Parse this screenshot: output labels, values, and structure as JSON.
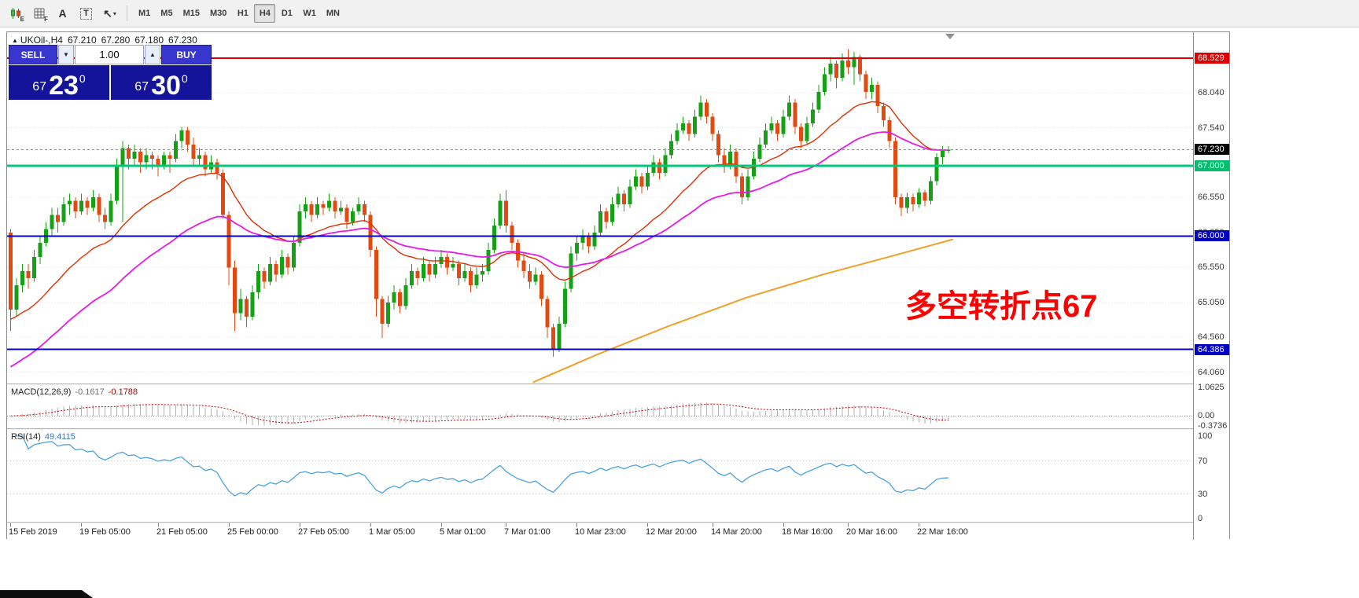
{
  "toolbar": {
    "icons": [
      {
        "name": "candlestick-chart-icon",
        "type": "candles",
        "badge": "E"
      },
      {
        "name": "grid-indicator-icon",
        "type": "grid",
        "badge": "F"
      },
      {
        "name": "text-tool-icon",
        "type": "glyph",
        "glyph": "A"
      },
      {
        "name": "label-tool-icon",
        "type": "boxglyph",
        "glyph": "T"
      },
      {
        "name": "cursor-tool-icon",
        "type": "glyph2",
        "glyph": "↖",
        "caret": "▾"
      }
    ],
    "timeframes": [
      {
        "label": "M1"
      },
      {
        "label": "M5"
      },
      {
        "label": "M15"
      },
      {
        "label": "M30"
      },
      {
        "label": "H1"
      },
      {
        "label": "H4",
        "active": true
      },
      {
        "label": "D1"
      },
      {
        "label": "W1"
      },
      {
        "label": "MN"
      }
    ]
  },
  "chart": {
    "marker": "▲",
    "symbol_timeframe": "UKOil-,H4",
    "ohlc": {
      "open": "67.210",
      "high": "67.280",
      "low": "67.180",
      "close": "67.230"
    }
  },
  "trade_panel": {
    "sell_label": "SELL",
    "buy_label": "BUY",
    "volume": "1.00",
    "spinner_down": "▼",
    "spinner_up": "▲",
    "sell_price": {
      "prefix": "67",
      "big": "23",
      "sup": "0"
    },
    "buy_price": {
      "prefix": "67",
      "big": "30",
      "sup": "0"
    }
  },
  "annotation": {
    "text": "多空转折点67",
    "color": "#FF0000"
  },
  "price_axis": {
    "regular": [
      {
        "label": "68.040",
        "price": 68.04
      },
      {
        "label": "67.540",
        "price": 67.54
      },
      {
        "label": "66.550",
        "price": 66.55
      },
      {
        "label": "66.050",
        "price": 66.05
      },
      {
        "label": "65.550",
        "price": 65.55
      },
      {
        "label": "65.050",
        "price": 65.05
      },
      {
        "label": "64.560",
        "price": 64.56
      },
      {
        "label": "64.060",
        "price": 64.06
      }
    ],
    "grid": [
      68.04,
      67.54,
      67.04,
      66.55,
      66.05,
      65.55,
      65.05,
      64.56,
      64.06
    ],
    "special": [
      {
        "label": "68.529",
        "price": 68.529,
        "bg": "#DD0000",
        "fg": "#ffffff"
      },
      {
        "label": "67.230",
        "price": 67.23,
        "bg": "#000000",
        "fg": "#ffffff"
      },
      {
        "label": "67.000",
        "price": 67.0,
        "bg": "#00BE6E",
        "fg": "#ffffff"
      },
      {
        "label": "66.000",
        "price": 66.0,
        "bg": "#0000BE",
        "fg": "#ffffff"
      },
      {
        "label": "64.386",
        "price": 64.386,
        "bg": "#0000BE",
        "fg": "#ffffff"
      }
    ]
  },
  "levels": [
    {
      "price": 68.529,
      "color": "#DD0000",
      "width": 2,
      "style": "solid"
    },
    {
      "price": 67.23,
      "color": "#8a8a8a",
      "width": 1,
      "style": "dashed"
    },
    {
      "price": 67.0,
      "color": "#00C878",
      "width": 3,
      "style": "solid"
    },
    {
      "price": 66.0,
      "color": "#0000BE",
      "width": 2,
      "style": "solid"
    },
    {
      "price": 64.386,
      "color": "#0000BE",
      "width": 2,
      "style": "solid"
    }
  ],
  "time_axis": [
    {
      "label": "15 Feb 2019",
      "index": 0
    },
    {
      "label": "19 Feb 05:00",
      "index": 12
    },
    {
      "label": "21 Feb 05:00",
      "index": 25
    },
    {
      "label": "25 Feb 00:00",
      "index": 37
    },
    {
      "label": "27 Feb 05:00",
      "index": 49
    },
    {
      "label": "1 Mar 05:00",
      "index": 61
    },
    {
      "label": "5 Mar 01:00",
      "index": 73
    },
    {
      "label": "7 Mar 01:00",
      "index": 84
    },
    {
      "label": "10 Mar 23:00",
      "index": 96
    },
    {
      "label": "12 Mar 20:00",
      "index": 108
    },
    {
      "label": "14 Mar 20:00",
      "index": 119
    },
    {
      "label": "18 Mar 16:00",
      "index": 131
    },
    {
      "label": "20 Mar 16:00",
      "index": 142
    },
    {
      "label": "22 Mar 16:00",
      "index": 154
    }
  ],
  "macd": {
    "name": "MACD(12,26,9)",
    "value_main": "-0.1617",
    "value_signal": "-0.1788",
    "fast": 12,
    "slow": 26,
    "signal": 9,
    "ymax": 1.0625,
    "ymin": -0.3736,
    "scale": [
      {
        "label": "1.0625",
        "v": 1.0625
      },
      {
        "label": "0.00",
        "v": 0
      },
      {
        "label": "-0.3736",
        "v": -0.3736
      }
    ],
    "hist_color": "#b2b2b2",
    "signal_color": "#c80000"
  },
  "rsi": {
    "name": "RSI(14)",
    "value": "49.4115",
    "period": 14,
    "color": "#4AA3E0",
    "scale": [
      {
        "label": "100",
        "v": 100
      },
      {
        "label": "70",
        "v": 70
      },
      {
        "label": "30",
        "v": 30
      },
      {
        "label": "0",
        "v": 0
      }
    ],
    "levels": [
      70,
      30
    ]
  },
  "chart_data": {
    "type": "candlestick",
    "symbol": "UKOil-",
    "timeframe": "H4",
    "price_range": [
      63.9,
      68.9
    ],
    "up_color": "#16A016",
    "down_color": "#E24A12",
    "moving_averages": [
      {
        "name": "fast-ma",
        "method": "ema",
        "period": 22,
        "seed": 64.8,
        "color": "#E03000",
        "width": 1.4
      },
      {
        "name": "medium-ma",
        "method": "ema",
        "period": 45,
        "seed": 64.1,
        "color": "#E619E6",
        "width": 1.8
      }
    ],
    "slow_ma": {
      "name": "slow-ma",
      "color": "#F0A028",
      "width": 2,
      "points": [
        [
          89,
          63.92
        ],
        [
          100,
          64.32
        ],
        [
          112,
          64.72
        ],
        [
          125,
          65.12
        ],
        [
          138,
          65.45
        ],
        [
          150,
          65.72
        ],
        [
          160,
          65.95
        ]
      ]
    },
    "candles": [
      [
        66.05,
        66.1,
        64.65,
        64.95
      ],
      [
        64.95,
        65.4,
        64.85,
        65.3
      ],
      [
        65.3,
        65.6,
        65.2,
        65.5
      ],
      [
        65.5,
        65.6,
        65.25,
        65.4
      ],
      [
        65.4,
        65.8,
        65.35,
        65.7
      ],
      [
        65.7,
        66.0,
        65.6,
        65.9
      ],
      [
        65.9,
        66.2,
        65.85,
        66.1
      ],
      [
        66.1,
        66.4,
        66.0,
        66.3
      ],
      [
        66.3,
        66.4,
        66.05,
        66.2
      ],
      [
        66.2,
        66.55,
        66.15,
        66.45
      ],
      [
        66.45,
        66.6,
        66.3,
        66.5
      ],
      [
        66.5,
        66.55,
        66.25,
        66.35
      ],
      [
        66.35,
        66.6,
        66.3,
        66.5
      ],
      [
        66.5,
        66.55,
        66.3,
        66.4
      ],
      [
        66.4,
        66.65,
        66.35,
        66.55
      ],
      [
        66.55,
        66.6,
        66.2,
        66.3
      ],
      [
        66.3,
        66.4,
        66.1,
        66.2
      ],
      [
        66.2,
        66.6,
        66.15,
        66.5
      ],
      [
        66.5,
        67.1,
        66.45,
        67.0
      ],
      [
        67.0,
        67.35,
        66.2,
        67.25
      ],
      [
        67.25,
        67.3,
        66.95,
        67.1
      ],
      [
        67.1,
        67.3,
        67.0,
        67.2
      ],
      [
        67.2,
        67.25,
        66.9,
        67.05
      ],
      [
        67.05,
        67.25,
        66.95,
        67.15
      ],
      [
        67.15,
        67.2,
        66.95,
        67.1
      ],
      [
        67.1,
        67.15,
        66.85,
        67.0
      ],
      [
        67.0,
        67.2,
        66.95,
        67.15
      ],
      [
        67.15,
        67.2,
        66.9,
        67.1
      ],
      [
        67.1,
        67.45,
        67.05,
        67.35
      ],
      [
        67.35,
        67.55,
        67.25,
        67.5
      ],
      [
        67.5,
        67.55,
        67.2,
        67.3
      ],
      [
        67.3,
        67.4,
        67.0,
        67.1
      ],
      [
        67.1,
        67.25,
        67.0,
        67.15
      ],
      [
        67.15,
        67.2,
        66.85,
        66.95
      ],
      [
        66.95,
        67.15,
        66.9,
        67.05
      ],
      [
        67.05,
        67.1,
        66.8,
        66.9
      ],
      [
        66.9,
        66.95,
        66.25,
        66.3
      ],
      [
        66.3,
        66.35,
        65.3,
        65.55
      ],
      [
        65.55,
        65.65,
        64.65,
        64.9
      ],
      [
        64.9,
        65.25,
        64.8,
        65.1
      ],
      [
        65.1,
        65.15,
        64.7,
        64.85
      ],
      [
        64.85,
        65.3,
        64.8,
        65.2
      ],
      [
        65.2,
        65.6,
        65.1,
        65.5
      ],
      [
        65.5,
        65.55,
        65.25,
        65.35
      ],
      [
        65.35,
        65.7,
        65.3,
        65.6
      ],
      [
        65.6,
        65.65,
        65.35,
        65.45
      ],
      [
        65.45,
        65.8,
        65.4,
        65.7
      ],
      [
        65.7,
        65.75,
        65.45,
        65.55
      ],
      [
        65.55,
        66.0,
        65.5,
        65.9
      ],
      [
        65.9,
        66.45,
        65.85,
        66.35
      ],
      [
        66.35,
        66.55,
        66.25,
        66.45
      ],
      [
        66.45,
        66.5,
        66.2,
        66.3
      ],
      [
        66.3,
        66.55,
        66.25,
        66.45
      ],
      [
        66.45,
        66.5,
        66.3,
        66.4
      ],
      [
        66.4,
        66.6,
        66.35,
        66.5
      ],
      [
        66.5,
        66.55,
        66.25,
        66.35
      ],
      [
        66.35,
        66.5,
        66.3,
        66.4
      ],
      [
        66.4,
        66.45,
        66.1,
        66.2
      ],
      [
        66.2,
        66.4,
        66.15,
        66.35
      ],
      [
        66.35,
        66.55,
        66.3,
        66.45
      ],
      [
        66.45,
        66.5,
        66.2,
        66.3
      ],
      [
        66.3,
        66.35,
        65.7,
        65.8
      ],
      [
        65.8,
        65.85,
        64.85,
        65.1
      ],
      [
        65.1,
        65.15,
        64.55,
        64.75
      ],
      [
        64.75,
        65.15,
        64.7,
        65.05
      ],
      [
        65.05,
        65.3,
        64.95,
        65.2
      ],
      [
        65.2,
        65.25,
        64.9,
        65.0
      ],
      [
        65.0,
        65.4,
        64.95,
        65.3
      ],
      [
        65.3,
        65.6,
        65.25,
        65.5
      ],
      [
        65.5,
        65.55,
        65.3,
        65.4
      ],
      [
        65.4,
        65.7,
        65.35,
        65.6
      ],
      [
        65.6,
        65.65,
        65.35,
        65.45
      ],
      [
        65.45,
        65.7,
        65.4,
        65.6
      ],
      [
        65.6,
        65.8,
        65.55,
        65.7
      ],
      [
        65.7,
        65.75,
        65.45,
        65.55
      ],
      [
        65.55,
        65.7,
        65.5,
        65.6
      ],
      [
        65.6,
        65.65,
        65.3,
        65.4
      ],
      [
        65.4,
        65.6,
        65.35,
        65.5
      ],
      [
        65.5,
        65.55,
        65.2,
        65.3
      ],
      [
        65.3,
        65.55,
        65.25,
        65.45
      ],
      [
        65.45,
        65.6,
        65.35,
        65.5
      ],
      [
        65.5,
        65.9,
        65.45,
        65.8
      ],
      [
        65.8,
        66.25,
        65.75,
        66.15
      ],
      [
        66.15,
        66.6,
        66.1,
        66.5
      ],
      [
        66.5,
        66.65,
        66.05,
        66.15
      ],
      [
        66.15,
        66.2,
        65.8,
        65.9
      ],
      [
        65.9,
        65.95,
        65.55,
        65.65
      ],
      [
        65.65,
        65.75,
        65.4,
        65.5
      ],
      [
        65.5,
        65.6,
        65.25,
        65.35
      ],
      [
        65.35,
        65.55,
        65.3,
        65.45
      ],
      [
        65.45,
        65.5,
        65.0,
        65.1
      ],
      [
        65.1,
        65.15,
        64.55,
        64.7
      ],
      [
        64.7,
        64.75,
        64.28,
        64.4
      ],
      [
        64.4,
        64.85,
        64.35,
        64.75
      ],
      [
        64.75,
        65.35,
        64.7,
        65.25
      ],
      [
        65.25,
        65.85,
        65.2,
        65.75
      ],
      [
        65.75,
        66.0,
        65.65,
        65.9
      ],
      [
        65.9,
        66.1,
        65.8,
        66.0
      ],
      [
        66.0,
        66.05,
        65.75,
        65.85
      ],
      [
        65.85,
        66.15,
        65.8,
        66.05
      ],
      [
        66.05,
        66.45,
        66.0,
        66.35
      ],
      [
        66.35,
        66.4,
        66.1,
        66.2
      ],
      [
        66.2,
        66.55,
        66.15,
        66.45
      ],
      [
        66.45,
        66.7,
        66.4,
        66.6
      ],
      [
        66.6,
        66.65,
        66.35,
        66.45
      ],
      [
        66.45,
        66.8,
        66.4,
        66.7
      ],
      [
        66.7,
        66.95,
        66.65,
        66.85
      ],
      [
        66.85,
        66.9,
        66.6,
        66.7
      ],
      [
        66.7,
        67.0,
        66.65,
        66.9
      ],
      [
        66.9,
        67.15,
        66.85,
        67.05
      ],
      [
        67.05,
        67.1,
        66.8,
        66.9
      ],
      [
        66.9,
        67.25,
        66.85,
        67.15
      ],
      [
        67.15,
        67.45,
        67.1,
        67.35
      ],
      [
        67.35,
        67.6,
        67.3,
        67.5
      ],
      [
        67.5,
        67.7,
        67.45,
        67.6
      ],
      [
        67.6,
        67.65,
        67.35,
        67.45
      ],
      [
        67.45,
        67.8,
        67.4,
        67.7
      ],
      [
        67.7,
        68.0,
        67.65,
        67.9
      ],
      [
        67.9,
        67.95,
        67.6,
        67.7
      ],
      [
        67.7,
        67.75,
        67.35,
        67.45
      ],
      [
        67.45,
        67.5,
        67.05,
        67.15
      ],
      [
        67.15,
        67.25,
        66.9,
        67.0
      ],
      [
        67.0,
        67.3,
        66.95,
        67.2
      ],
      [
        67.2,
        67.25,
        66.75,
        66.85
      ],
      [
        66.85,
        66.9,
        66.45,
        66.55
      ],
      [
        66.55,
        66.95,
        66.5,
        66.85
      ],
      [
        66.85,
        67.2,
        66.8,
        67.1
      ],
      [
        67.1,
        67.4,
        67.05,
        67.3
      ],
      [
        67.3,
        67.6,
        67.25,
        67.5
      ],
      [
        67.5,
        67.7,
        67.45,
        67.6
      ],
      [
        67.6,
        67.65,
        67.35,
        67.45
      ],
      [
        67.45,
        67.8,
        67.4,
        67.7
      ],
      [
        67.7,
        68.0,
        67.65,
        67.9
      ],
      [
        67.9,
        67.95,
        67.45,
        67.55
      ],
      [
        67.55,
        67.6,
        67.25,
        67.35
      ],
      [
        67.35,
        67.7,
        67.3,
        67.6
      ],
      [
        67.6,
        67.9,
        67.55,
        67.8
      ],
      [
        67.8,
        68.15,
        67.75,
        68.05
      ],
      [
        68.05,
        68.4,
        68.0,
        68.3
      ],
      [
        68.3,
        68.55,
        68.2,
        68.45
      ],
      [
        68.45,
        68.5,
        68.1,
        68.25
      ],
      [
        68.25,
        68.6,
        68.2,
        68.5
      ],
      [
        68.5,
        68.66,
        68.3,
        68.4
      ],
      [
        68.4,
        68.62,
        68.15,
        68.55
      ],
      [
        68.55,
        68.58,
        68.2,
        68.3
      ],
      [
        68.3,
        68.35,
        67.95,
        68.05
      ],
      [
        68.05,
        68.25,
        67.95,
        68.15
      ],
      [
        68.15,
        68.2,
        67.75,
        67.85
      ],
      [
        67.85,
        67.9,
        67.55,
        67.65
      ],
      [
        67.65,
        67.7,
        67.25,
        67.35
      ],
      [
        67.35,
        67.4,
        66.45,
        66.55
      ],
      [
        66.55,
        66.6,
        66.28,
        66.4
      ],
      [
        66.4,
        66.62,
        66.32,
        66.55
      ],
      [
        66.55,
        66.6,
        66.35,
        66.45
      ],
      [
        66.45,
        66.68,
        66.4,
        66.62
      ],
      [
        66.62,
        66.66,
        66.42,
        66.5
      ],
      [
        66.5,
        66.85,
        66.45,
        66.78
      ],
      [
        66.78,
        67.18,
        66.72,
        67.12
      ],
      [
        67.12,
        67.28,
        67.02,
        67.21
      ],
      [
        67.21,
        67.28,
        67.18,
        67.23
      ]
    ]
  }
}
